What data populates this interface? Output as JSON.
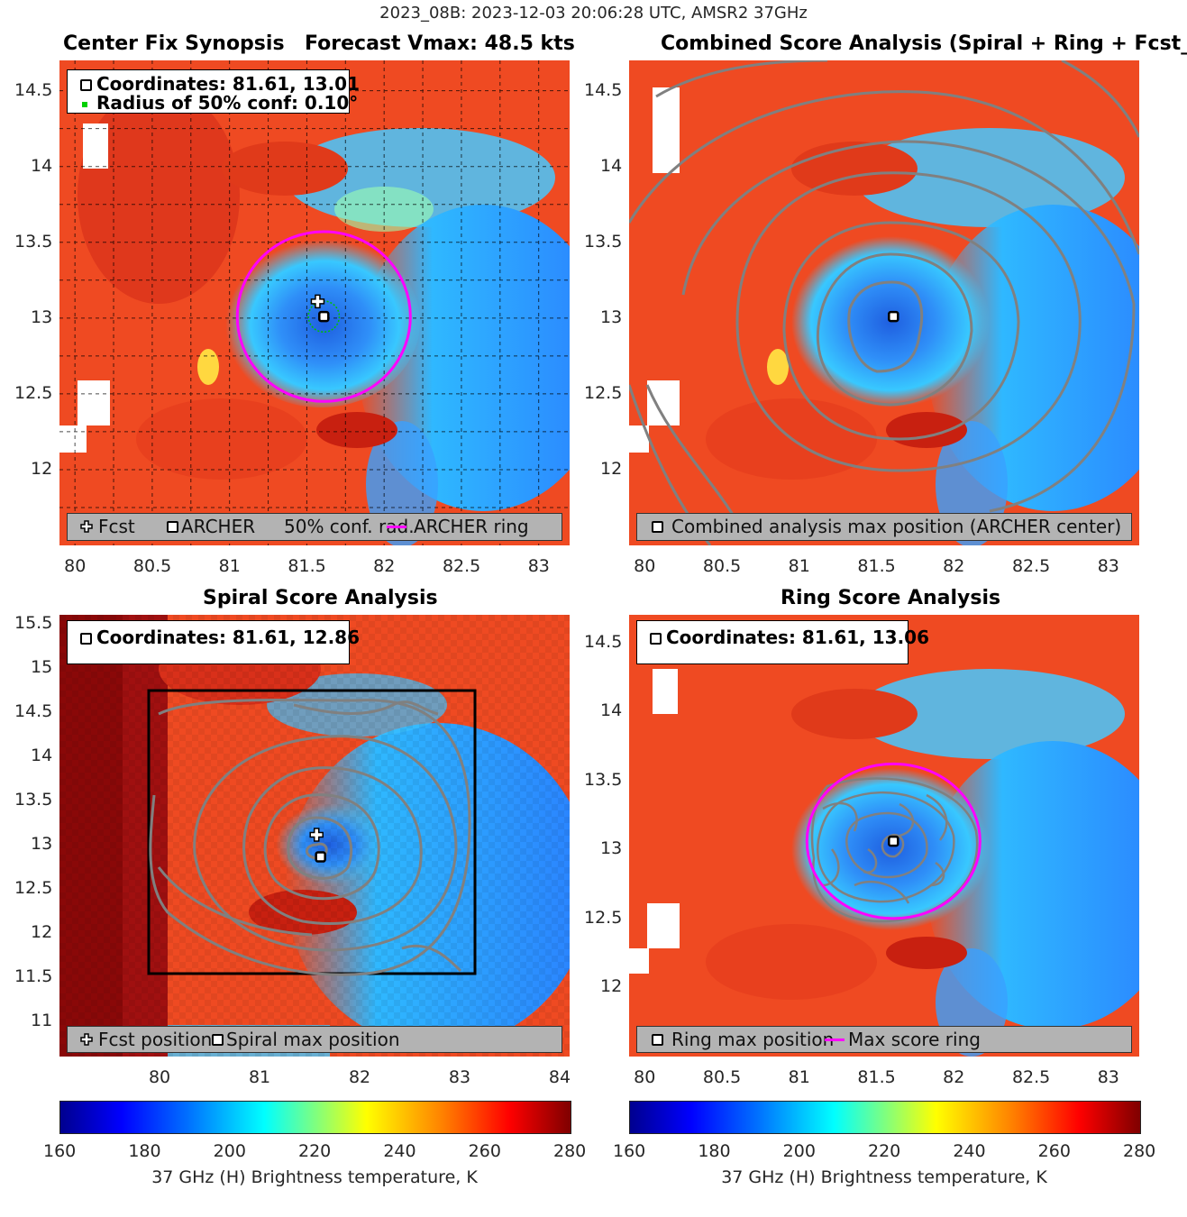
{
  "figure": {
    "suptitle": "2023_08B: 2023-12-03 20:06:28 UTC, AMSR2 37GHz",
    "colors": {
      "ring": "#ff00ff",
      "contour": "#808080",
      "box": "#000000",
      "conf": "#00c000"
    }
  },
  "panels": {
    "synopsis": {
      "title_left": "Center Fix Synopsis",
      "title_right": "Forecast Vmax: 48.5 kts",
      "legend_line1": "Coordinates: 81.61, 13.01",
      "legend_line2": "Radius of 50% conf: 0.10°",
      "bottom_fcst": "Fcst",
      "bottom_archer": "ARCHER",
      "bottom_conf": "50% conf. rad.",
      "bottom_ring": "ARCHER ring",
      "xticks": [
        "80",
        "80.5",
        "81",
        "81.5",
        "82",
        "82.5",
        "83"
      ],
      "yticks": [
        "14.5",
        "14",
        "13.5",
        "13",
        "12.5",
        "12"
      ]
    },
    "combined": {
      "title": "Combined Score Analysis (Spiral + Ring + Fcst_Pe",
      "legend": "Combined analysis max position (ARCHER center)",
      "xticks": [
        "80",
        "80.5",
        "81",
        "81.5",
        "82",
        "82.5",
        "83"
      ],
      "yticks": [
        "14.5",
        "14",
        "13.5",
        "13",
        "12.5",
        "12"
      ]
    },
    "spiral": {
      "title": "Spiral Score Analysis",
      "legend_line1": "Coordinates: 81.61, 12.86",
      "bottom_fcst": "Fcst position",
      "bottom_max": "Spiral max position",
      "xticks": [
        "80",
        "81",
        "82",
        "83",
        "84"
      ],
      "yticks": [
        "15.5",
        "15",
        "14.5",
        "14",
        "13.5",
        "13",
        "12.5",
        "12",
        "11.5",
        "11"
      ]
    },
    "ring": {
      "title": "Ring Score Analysis",
      "legend_line1": "Coordinates: 81.61, 13.06",
      "bottom_max": "Ring max position",
      "bottom_ring": "Max score ring",
      "xticks": [
        "80",
        "80.5",
        "81",
        "81.5",
        "82",
        "82.5",
        "83"
      ],
      "yticks": [
        "14.5",
        "14",
        "13.5",
        "13",
        "12.5",
        "12"
      ]
    }
  },
  "colorbar": {
    "ticks": [
      "160",
      "180",
      "200",
      "220",
      "240",
      "260",
      "280"
    ],
    "label": "37 GHz (H) Brightness temperature, K"
  },
  "chart_data": [
    {
      "type": "heatmap",
      "title": "Center Fix Synopsis",
      "subtitle": "Forecast Vmax: 48.5 kts",
      "xlim": [
        79.9,
        83.2
      ],
      "ylim": [
        11.5,
        14.7
      ],
      "fcst_position": [
        81.57,
        13.11
      ],
      "archer_position": [
        81.61,
        13.01
      ],
      "conf_radius_deg": 0.1,
      "archer_ring_radius_deg": 0.56,
      "colorbar": {
        "range": [
          160,
          280
        ],
        "label": "37 GHz (H) Brightness temperature, K"
      }
    },
    {
      "type": "heatmap",
      "title": "Combined Score Analysis (Spiral + Ring + Fcst_Pe",
      "xlim": [
        79.9,
        83.2
      ],
      "ylim": [
        11.5,
        14.7
      ],
      "max_position": [
        81.61,
        13.01
      ]
    },
    {
      "type": "heatmap",
      "title": "Spiral Score Analysis",
      "xlim": [
        79.0,
        84.1
      ],
      "ylim": [
        10.6,
        15.6
      ],
      "fcst_position": [
        81.57,
        13.11
      ],
      "max_position": [
        81.61,
        12.86
      ],
      "search_box": {
        "x": [
          79.9,
          83.2
        ],
        "y": [
          11.5,
          14.7
        ]
      }
    },
    {
      "type": "heatmap",
      "title": "Ring Score Analysis",
      "xlim": [
        79.9,
        83.2
      ],
      "ylim": [
        11.5,
        14.7
      ],
      "max_position": [
        81.61,
        13.06
      ],
      "max_ring_radius_deg": 0.56,
      "colorbar": {
        "range": [
          160,
          280
        ],
        "label": "37 GHz (H) Brightness temperature, K"
      }
    }
  ]
}
